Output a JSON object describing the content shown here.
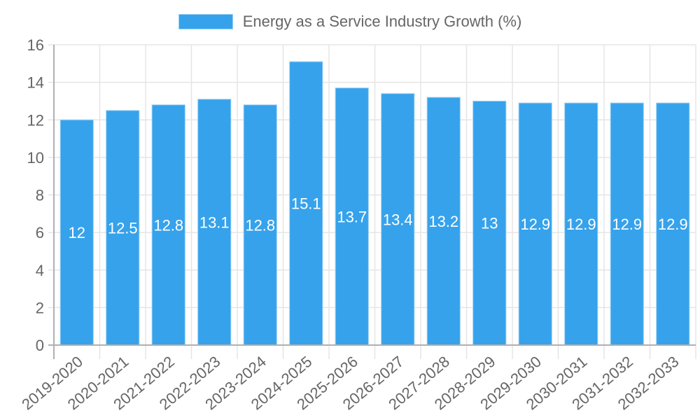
{
  "chart_data": {
    "type": "bar",
    "title": "",
    "legend": {
      "position": "top",
      "entries": [
        "Energy as a Service Industry Growth (%)"
      ]
    },
    "series": [
      {
        "name": "Energy as a Service Industry Growth (%)",
        "color": "#36A2EB",
        "border_color": "#9AD0F5",
        "values": [
          12,
          12.5,
          12.8,
          13.1,
          12.8,
          15.1,
          13.7,
          13.4,
          13.2,
          13,
          12.9,
          12.9,
          12.9,
          12.9
        ]
      }
    ],
    "categories": [
      "2019-2020",
      "2020-2021",
      "2021-2022",
      "2022-2023",
      "2023-2024",
      "2024-2025",
      "2025-2026",
      "2026-2027",
      "2027-2028",
      "2028-2029",
      "2029-2030",
      "2030-2031",
      "2031-2032",
      "2032-2033"
    ],
    "data_labels": [
      "12",
      "12.5",
      "12.8",
      "13.1",
      "12.8",
      "15.1",
      "13.7",
      "13.4",
      "13.2",
      "13",
      "12.9",
      "12.9",
      "12.9",
      "12.9"
    ],
    "xlabel": "",
    "ylabel": "",
    "ylim": [
      0,
      16
    ],
    "yticks": [
      "0",
      "2",
      "4",
      "6",
      "8",
      "10",
      "12",
      "14",
      "16"
    ],
    "grid": true,
    "colors": {
      "grid": "#e5e5e5",
      "axis": "#b0b0b0",
      "tick_text": "#666666",
      "label_text": "#ffffff"
    }
  }
}
